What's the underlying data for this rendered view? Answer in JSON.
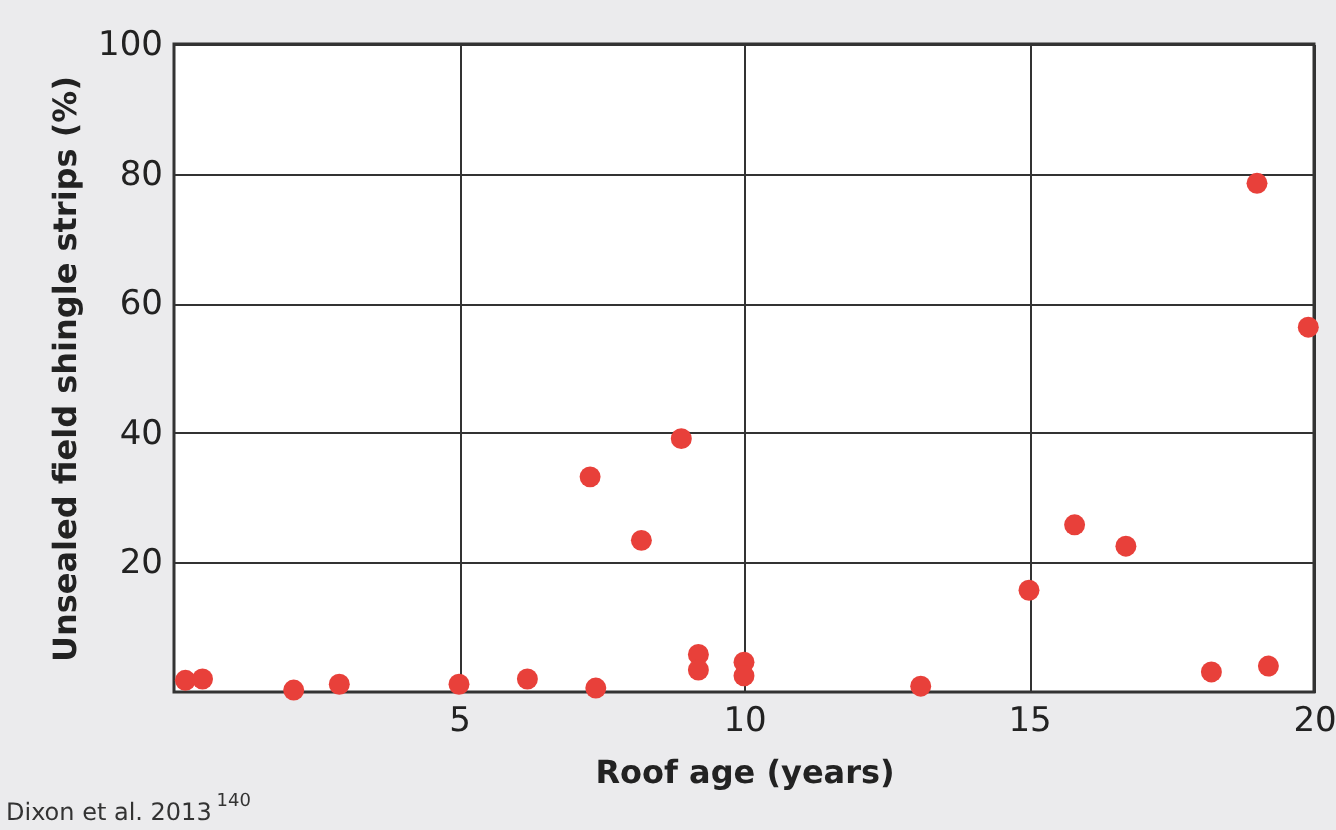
{
  "chart_data": {
    "type": "scatter",
    "xlabel": "Roof age (years)",
    "ylabel": "Unsealed field shingle strips (%)",
    "annotations": [
      "Dixon et al. 2013 $^{140}$"
    ],
    "x": [
      0.2,
      0.5,
      2.1,
      2.9,
      5.0,
      6.2,
      7.4,
      9.2,
      9.2,
      10.0,
      10.0,
      7.3,
      8.2,
      8.9,
      13.1,
      15.0,
      15.8,
      16.7,
      18.2,
      19.2,
      19.0,
      19.9
    ],
    "values": [
      1.8,
      2,
      0.3,
      1.2,
      1.2,
      2,
      0.6,
      5.8,
      3.4,
      4.6,
      2.5,
      33.2,
      23.4,
      39.1,
      0.9,
      15.7,
      25.8,
      22.5,
      3.1,
      4.0,
      78.5,
      56.3
    ],
    "color": "#e8403a",
    "marker": "circle",
    "xlim": [
      0,
      20
    ],
    "xticks": [
      5,
      10,
      15,
      20
    ],
    "ylim": [
      0,
      100
    ],
    "yticks": [
      20,
      40,
      60,
      80,
      100
    ],
    "grid": true
  }
}
